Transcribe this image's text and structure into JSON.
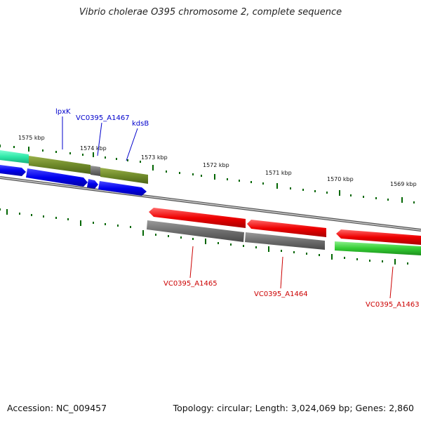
{
  "title": "Vibrio cholerae O395 chromosome 2, complete sequence",
  "footer": {
    "accession": "Accession: NC_009457",
    "stats": "Topology: circular; Length: 3,024,069 bp; Genes: 2,860"
  },
  "colors": {
    "forward_label": "#0000cc",
    "reverse_label": "#cc0000",
    "tick": "#006600",
    "backbone": "#888888"
  },
  "kbp_labels": [
    "1575 kbp",
    "1574 kbp",
    "1573 kbp",
    "1572 kbp",
    "1571 kbp",
    "1570 kbp",
    "1569 kbp"
  ],
  "gene_labels": {
    "lpxK": "lpxK",
    "vc0395_a1467": "VC0395_A1467",
    "kdsB": "kdsB",
    "vc0395_a1465": "VC0395_A1465",
    "vc0395_a1464": "VC0395_A1464",
    "vc0395_a1463": "VC0395_A1463"
  }
}
